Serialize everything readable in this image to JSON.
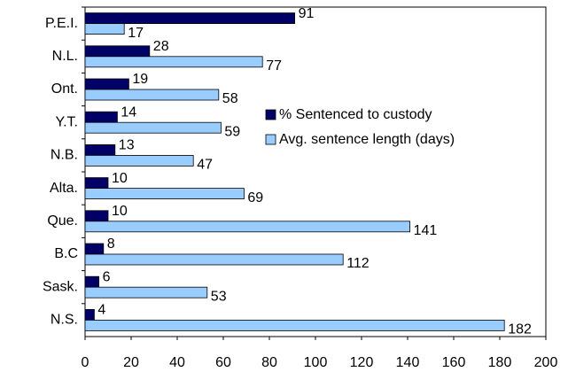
{
  "chart_data": {
    "type": "bar",
    "orientation": "horizontal",
    "categories": [
      "P.E.I.",
      "N.L.",
      "Ont.",
      "Y.T.",
      "N.B.",
      "Alta.",
      "Que.",
      "B.C",
      "Sask.",
      "N.S."
    ],
    "series": [
      {
        "name": "% Sentenced to custody",
        "color": "#000066",
        "values": [
          91,
          28,
          19,
          14,
          13,
          10,
          10,
          8,
          6,
          4
        ]
      },
      {
        "name": "Avg. sentence length (days)",
        "color": "#99ccff",
        "values": [
          17,
          77,
          58,
          59,
          47,
          69,
          141,
          112,
          53,
          182
        ]
      }
    ],
    "xlim": [
      0,
      200
    ],
    "xticks": [
      0,
      20,
      40,
      60,
      80,
      100,
      120,
      140,
      160,
      180,
      200
    ],
    "grid": false,
    "legend": "right"
  }
}
